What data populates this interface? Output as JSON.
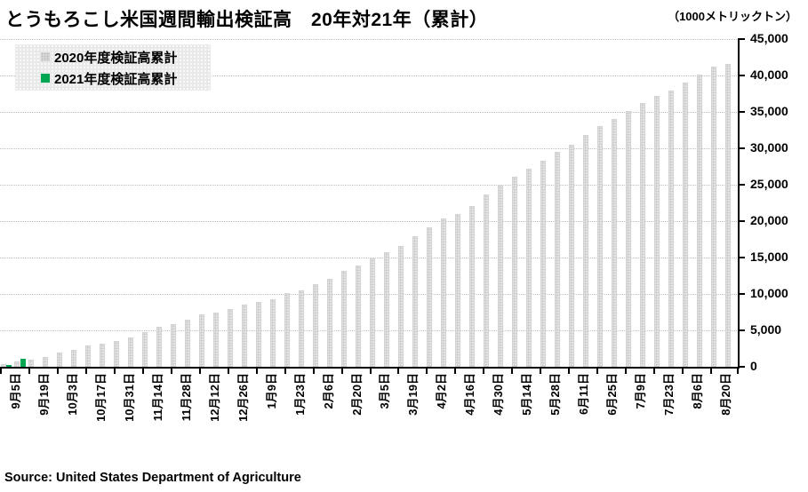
{
  "header": {
    "title": "とうもろこし米国週間輸出検証高　20年対21年（累計）",
    "unit_label": "（1000メトリックトン）"
  },
  "legend": {
    "items": [
      {
        "label": "2020年度検証高累計",
        "color": "#d7d7d7"
      },
      {
        "label": "2021年度検証高累計",
        "color": "#00a651"
      }
    ]
  },
  "footer": {
    "source": "Source: United States Department of Agriculture"
  },
  "chart_data": {
    "type": "bar",
    "title": "とうもろこし米国週間輸出検証高　20年対21年（累計）",
    "unit": "1000メトリックトン",
    "ylim": [
      0,
      45000
    ],
    "ytick_interval": 5000,
    "ytick_labels": [
      "0",
      "5,000",
      "10,000",
      "15,000",
      "20,000",
      "25,000",
      "30,000",
      "35,000",
      "40,000",
      "45,000"
    ],
    "grid": "horizontal-dotted",
    "legend_position": "top-left",
    "y_axis_side": "right",
    "weeks_total": 52,
    "x_tick_labels": [
      "9月5日",
      "9月19日",
      "10月3日",
      "10月17日",
      "10月31日",
      "11月14日",
      "11月28日",
      "12月12日",
      "12月26日",
      "1月9日",
      "1月23日",
      "2月6日",
      "2月20日",
      "3月5日",
      "3月19日",
      "4月2日",
      "4月16日",
      "4月30日",
      "5月14日",
      "5月28日",
      "6月11日",
      "6月25日",
      "7月9日",
      "7月23日",
      "8月6日",
      "8月20日"
    ],
    "x_tick_label_every_n_bars": 2,
    "series": [
      {
        "name": "2020年度検証高累計",
        "color": "#d9d9d9",
        "values": [
          400,
          700,
          950,
          1350,
          1900,
          2300,
          2900,
          3200,
          3500,
          4000,
          4700,
          5450,
          5850,
          6450,
          7150,
          7500,
          7950,
          8500,
          8900,
          9300,
          10100,
          10500,
          11350,
          12100,
          13150,
          13950,
          14900,
          15750,
          16600,
          17950,
          19150,
          20350,
          21000,
          22100,
          23600,
          24850,
          26050,
          27200,
          28300,
          29500,
          30450,
          31850,
          33000,
          34000,
          35100,
          36200,
          37150,
          37950,
          39000,
          40100,
          41200,
          41550
        ]
      },
      {
        "name": "2021年度検証高累計",
        "color": "#00a651",
        "values": [
          300,
          1100
        ]
      }
    ]
  }
}
